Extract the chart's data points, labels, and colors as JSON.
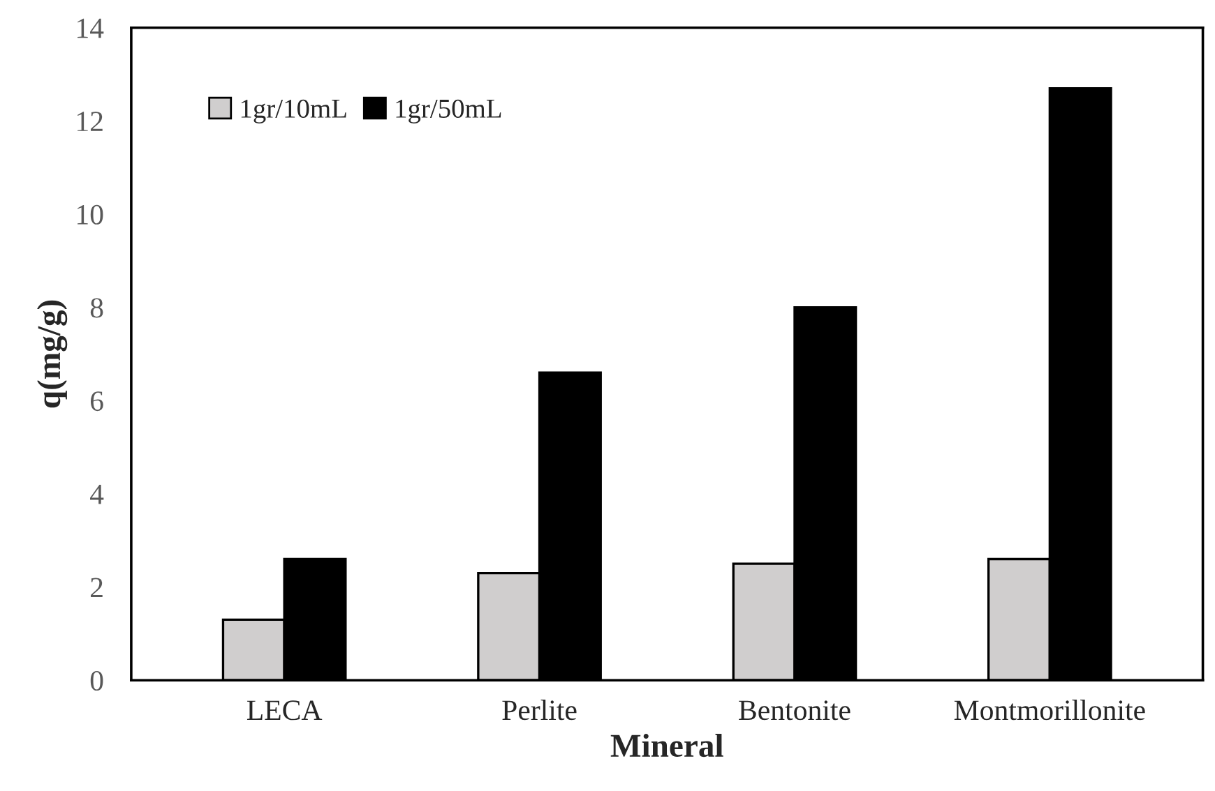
{
  "chart_data": {
    "type": "bar",
    "xlabel": "Mineral",
    "ylabel": "q(mg/g)",
    "categories": [
      "LECA",
      "Perlite",
      "Bentonite",
      "Montmorillonite"
    ],
    "series": [
      {
        "name": "1gr/10mL",
        "color": "#d0cece",
        "values": [
          1.3,
          2.3,
          2.5,
          2.6
        ]
      },
      {
        "name": "1gr/50mL",
        "color": "#000000",
        "values": [
          2.6,
          6.6,
          8.0,
          12.7
        ]
      }
    ],
    "ylim": [
      0,
      14
    ],
    "yticks": [
      0,
      2,
      4,
      6,
      8,
      10,
      12,
      14
    ],
    "grid": false,
    "legend": "top left"
  }
}
